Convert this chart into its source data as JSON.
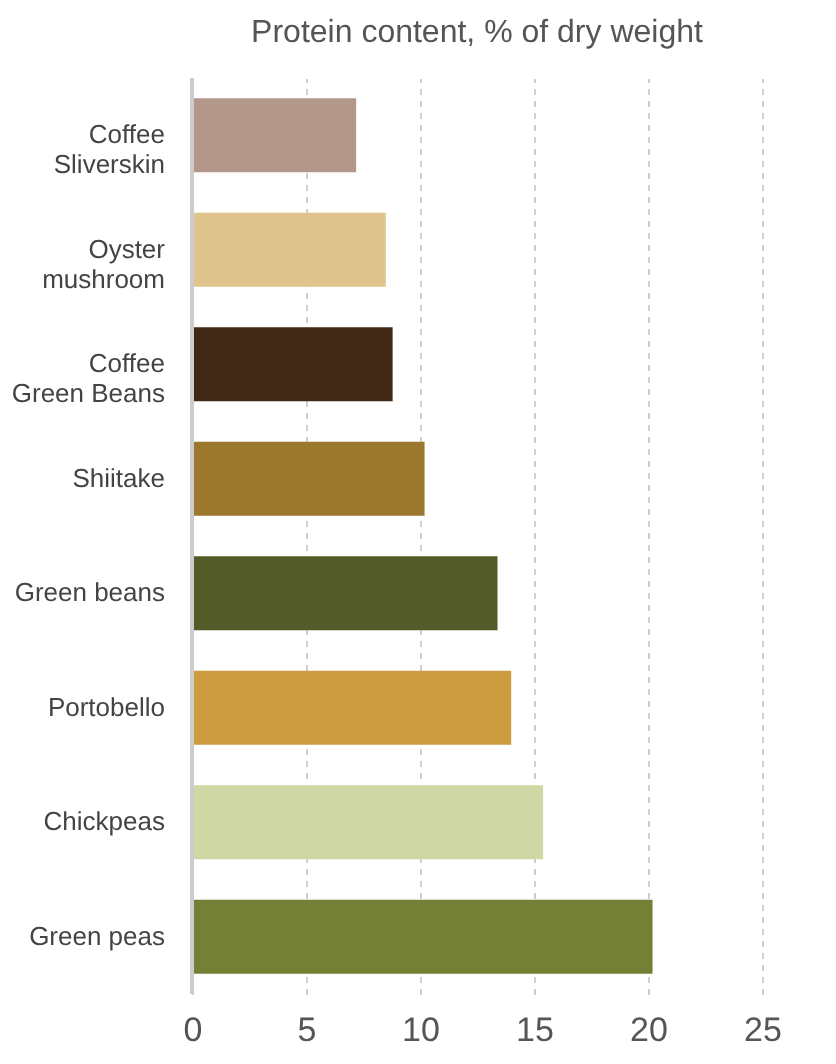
{
  "chart_data": {
    "type": "bar",
    "orientation": "horizontal",
    "title": "Protein content, % of dry weight",
    "categories": [
      "Coffee\nSliverskin",
      "Oyster\nmushroom",
      "Coffee\nGreen Beans",
      "Shiitake",
      "Green beans",
      "Portobello",
      "Chickpeas",
      "Green peas"
    ],
    "values": [
      7.2,
      8.5,
      8.8,
      10.2,
      13.4,
      14.0,
      15.4,
      20.2
    ],
    "colors": [
      "#b3978b",
      "#dfc48d",
      "#3f2916",
      "#9c772e",
      "#535c28",
      "#cc9b3f",
      "#cfd7a4",
      "#738035"
    ],
    "xlim": [
      0,
      25
    ],
    "xticks": [
      0,
      5,
      10,
      15,
      20,
      25
    ],
    "grid": "x"
  }
}
